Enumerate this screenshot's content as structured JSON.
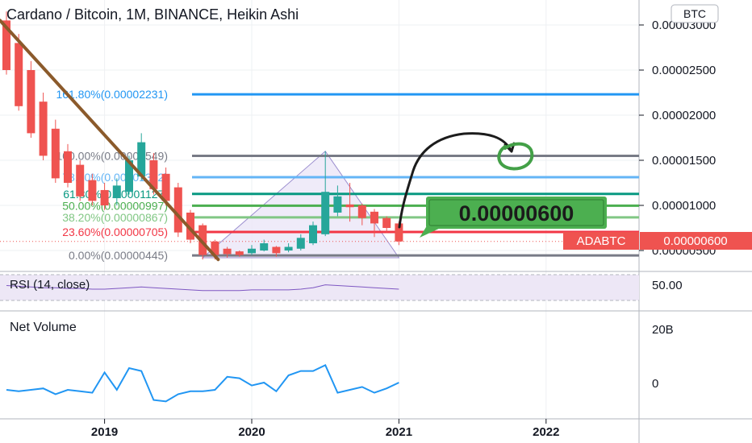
{
  "chart": {
    "title": "Cardano / Bitcoin, 1M, BINANCE, Heikin Ashi",
    "currency_badge": "BTC",
    "symbol_tag": "ADABTC",
    "last_price_label": "0.00000600",
    "callout_price": "0.00000600"
  },
  "price_axis": {
    "ticks": [
      "0.00003000",
      "0.00002500",
      "0.00002000",
      "0.00001500",
      "0.00001000",
      "0.00000500"
    ]
  },
  "time_axis": {
    "ticks": [
      "2019",
      "2020",
      "2021",
      "2022"
    ]
  },
  "fib_levels": [
    {
      "label": "161.80%(0.00002231)",
      "value": 2.231e-05,
      "color": "#2196f3"
    },
    {
      "label": "100.00%(0.00001549)",
      "value": 1.549e-05,
      "color": "#787b86"
    },
    {
      "label": "78.60%(0.00001312)",
      "value": 1.312e-05,
      "color": "#64b5f6"
    },
    {
      "label": "61.80%(0.00001127)",
      "value": 1.127e-05,
      "color": "#089981"
    },
    {
      "label": "50.00%(0.00000997)",
      "value": 9.97e-06,
      "color": "#4caf50"
    },
    {
      "label": "38.20%(0.00000867)",
      "value": 8.67e-06,
      "color": "#81c784"
    },
    {
      "label": "23.60%(0.00000705)",
      "value": 7.05e-06,
      "color": "#f23645"
    },
    {
      "label": "0.00%(0.00000445)",
      "value": 4.45e-06,
      "color": "#787b86"
    }
  ],
  "rsi": {
    "label": "RSI (14, close)",
    "value_label": "50.00"
  },
  "volume": {
    "label": "Net Volume",
    "ticks": [
      "20B",
      "0"
    ]
  },
  "colors": {
    "up": "#26a69a",
    "down": "#ef5350",
    "trendline": "#8b5a2b",
    "triangle_fill": "#ece8f8",
    "rsi_band": "#ede7f6",
    "volume_line": "#2196f3",
    "price_tag": "#ef5350",
    "callout": "#4caf50"
  },
  "chart_data": [
    {
      "type": "candlestick",
      "style": "Heikin Ashi",
      "interval": "1M",
      "x_range": [
        "2018-05",
        "2022-10"
      ],
      "ylim": [
        3e-06,
        3.1e-05
      ],
      "last_price": 6e-06,
      "candles": [
        {
          "t": "2018-05",
          "o": 3.05e-05,
          "h": 3.15e-05,
          "l": 2.45e-05,
          "c": 2.5e-05
        },
        {
          "t": "2018-06",
          "o": 2.8e-05,
          "h": 2.9e-05,
          "l": 2.05e-05,
          "c": 2.1e-05
        },
        {
          "t": "2018-07",
          "o": 2.5e-05,
          "h": 2.6e-05,
          "l": 1.75e-05,
          "c": 1.8e-05
        },
        {
          "t": "2018-08",
          "o": 2.15e-05,
          "h": 2.25e-05,
          "l": 1.5e-05,
          "c": 1.55e-05
        },
        {
          "t": "2018-09",
          "o": 1.85e-05,
          "h": 1.95e-05,
          "l": 1.25e-05,
          "c": 1.3e-05
        },
        {
          "t": "2018-10",
          "o": 1.6e-05,
          "h": 1.68e-05,
          "l": 1.2e-05,
          "c": 1.25e-05
        },
        {
          "t": "2018-11",
          "o": 1.45e-05,
          "h": 1.5e-05,
          "l": 1.05e-05,
          "c": 1.1e-05
        },
        {
          "t": "2018-12",
          "o": 1.28e-05,
          "h": 1.35e-05,
          "l": 1e-05,
          "c": 1.05e-05
        },
        {
          "t": "2019-01",
          "o": 1.17e-05,
          "h": 1.25e-05,
          "l": 9.5e-06,
          "c": 1e-05
        },
        {
          "t": "2019-02",
          "o": 1.08e-05,
          "h": 1.3e-05,
          "l": 1e-05,
          "c": 1.22e-05
        },
        {
          "t": "2019-03",
          "o": 1.15e-05,
          "h": 1.55e-05,
          "l": 1.12e-05,
          "c": 1.5e-05
        },
        {
          "t": "2019-04",
          "o": 1.32e-05,
          "h": 1.8e-05,
          "l": 1.28e-05,
          "c": 1.7e-05
        },
        {
          "t": "2019-05",
          "o": 1.5e-05,
          "h": 1.58e-05,
          "l": 1.12e-05,
          "c": 1.18e-05
        },
        {
          "t": "2019-06",
          "o": 1.35e-05,
          "h": 1.42e-05,
          "l": 1e-05,
          "c": 1.05e-05
        },
        {
          "t": "2019-07",
          "o": 1.2e-05,
          "h": 1.25e-05,
          "l": 6.5e-06,
          "c": 7e-06
        },
        {
          "t": "2019-08",
          "o": 9.2e-06,
          "h": 9.5e-06,
          "l": 5.8e-06,
          "c": 6.2e-06
        },
        {
          "t": "2019-09",
          "o": 7.8e-06,
          "h": 8e-06,
          "l": 4e-06,
          "c": 4.5e-06
        },
        {
          "t": "2019-10",
          "o": 6e-06,
          "h": 6.2e-06,
          "l": 4e-06,
          "c": 4.5e-06
        },
        {
          "t": "2019-11",
          "o": 5.2e-06,
          "h": 5.4e-06,
          "l": 4.2e-06,
          "c": 4.6e-06
        },
        {
          "t": "2019-12",
          "o": 4.9e-06,
          "h": 5e-06,
          "l": 4.3e-06,
          "c": 4.5e-06
        },
        {
          "t": "2020-01",
          "o": 4.7e-06,
          "h": 5.6e-06,
          "l": 4.5e-06,
          "c": 5.2e-06
        },
        {
          "t": "2020-02",
          "o": 5e-06,
          "h": 6.2e-06,
          "l": 4.9e-06,
          "c": 5.8e-06
        },
        {
          "t": "2020-03",
          "o": 5.4e-06,
          "h": 5.5e-06,
          "l": 4.3e-06,
          "c": 4.7e-06
        },
        {
          "t": "2020-04",
          "o": 5e-06,
          "h": 5.8e-06,
          "l": 4.8e-06,
          "c": 5.4e-06
        },
        {
          "t": "2020-05",
          "o": 5.2e-06,
          "h": 6.8e-06,
          "l": 5e-06,
          "c": 6.4e-06
        },
        {
          "t": "2020-06",
          "o": 5.8e-06,
          "h": 8.2e-06,
          "l": 5.6e-06,
          "c": 7.8e-06
        },
        {
          "t": "2020-07",
          "o": 6.8e-06,
          "h": 1.6e-05,
          "l": 6.6e-06,
          "c": 1.15e-05
        },
        {
          "t": "2020-08",
          "o": 9.2e-06,
          "h": 1.22e-05,
          "l": 8.8e-06,
          "c": 1.1e-05
        },
        {
          "t": "2020-09",
          "o": 1.01e-05,
          "h": 1.25e-05,
          "l": 8.2e-06,
          "c": 9.8e-06
        },
        {
          "t": "2020-10",
          "o": 1e-05,
          "h": 1.02e-05,
          "l": 7.8e-06,
          "c": 8.6e-06
        },
        {
          "t": "2020-11",
          "o": 9.3e-06,
          "h": 9.6e-06,
          "l": 6.5e-06,
          "c": 8e-06
        },
        {
          "t": "2020-12",
          "o": 8.6e-06,
          "h": 8.8e-06,
          "l": 7e-06,
          "c": 7.5e-06
        },
        {
          "t": "2021-01",
          "o": 8e-06,
          "h": 8.2e-06,
          "l": 5.6e-06,
          "c": 6e-06
        }
      ]
    },
    {
      "type": "line",
      "name": "RSI (14, close)",
      "ylim": [
        30,
        70
      ],
      "x": [
        "2018-05",
        "2018-06",
        "2018-07",
        "2018-08",
        "2018-09",
        "2018-10",
        "2018-11",
        "2018-12",
        "2019-01",
        "2019-02",
        "2019-03",
        "2019-04",
        "2019-05",
        "2019-06",
        "2019-07",
        "2019-08",
        "2019-09",
        "2019-10",
        "2019-11",
        "2019-12",
        "2020-01",
        "2020-02",
        "2020-03",
        "2020-04",
        "2020-05",
        "2020-06",
        "2020-07",
        "2020-08",
        "2020-09",
        "2020-10",
        "2020-11",
        "2020-12",
        "2021-01"
      ],
      "values": [
        49,
        48,
        47,
        46,
        46,
        45,
        45,
        44,
        44,
        45,
        46,
        47,
        46,
        45,
        44,
        43,
        42,
        42,
        42,
        42,
        43,
        43,
        43,
        43,
        44,
        46,
        50,
        49,
        48,
        47,
        46,
        45,
        44
      ]
    },
    {
      "type": "line",
      "name": "Net Volume",
      "ylim": [
        -35,
        35
      ],
      "x": [
        "2018-05",
        "2018-06",
        "2018-07",
        "2018-08",
        "2018-09",
        "2018-10",
        "2018-11",
        "2018-12",
        "2019-01",
        "2019-02",
        "2019-03",
        "2019-04",
        "2019-05",
        "2019-06",
        "2019-07",
        "2019-08",
        "2019-09",
        "2019-10",
        "2019-11",
        "2019-12",
        "2020-01",
        "2020-02",
        "2020-03",
        "2020-04",
        "2020-05",
        "2020-06",
        "2020-07",
        "2020-08",
        "2020-09",
        "2020-10",
        "2020-11",
        "2020-12",
        "2021-01"
      ],
      "values": [
        -5,
        -6,
        -5,
        -4,
        -8,
        -5,
        -6,
        -7,
        7,
        -5,
        10,
        8,
        -12,
        -13,
        -8,
        -6,
        -6,
        -5,
        4,
        3,
        -2,
        0,
        -6,
        5,
        8,
        8,
        12,
        -7,
        -5,
        -3,
        -7,
        -4,
        0
      ]
    }
  ]
}
